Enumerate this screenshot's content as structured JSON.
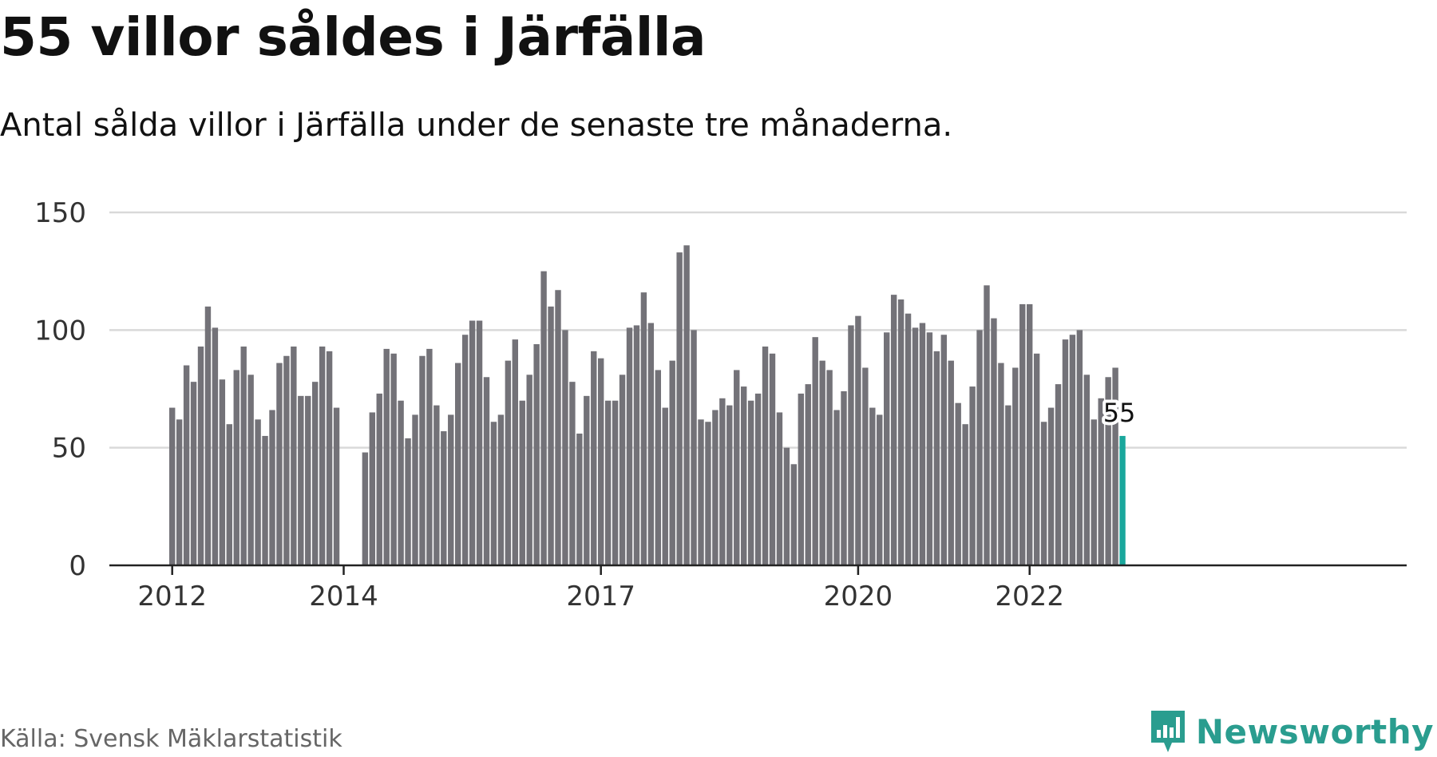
{
  "header": {
    "title": "55 villor såldes i Järfälla",
    "subtitle": "Antal sålda villor i Järfälla under de senaste tre månaderna."
  },
  "footer": {
    "source": "Källa: Svensk Mäklarstatistik",
    "brand": "Newsworthy"
  },
  "colors": {
    "bar": "#737278",
    "highlight": "#1aa79c",
    "grid": "#d9d9d9",
    "axis": "#222222",
    "brand": "#2a9d8f"
  },
  "chart_data": {
    "type": "bar",
    "title": "55 villor såldes i Järfälla",
    "subtitle": "Antal sålda villor i Järfälla under de senaste tre månaderna.",
    "xlabel": "",
    "ylabel": "",
    "ylim": [
      0,
      150
    ],
    "yticks": [
      0,
      50,
      100,
      150
    ],
    "xticks": [
      "2012",
      "2014",
      "2017",
      "2020",
      "2022"
    ],
    "grid": true,
    "values": [
      67,
      62,
      85,
      78,
      93,
      110,
      101,
      79,
      60,
      83,
      93,
      81,
      62,
      55,
      66,
      86,
      89,
      93,
      72,
      72,
      78,
      93,
      91,
      67,
      null,
      null,
      null,
      48,
      65,
      73,
      92,
      90,
      70,
      54,
      64,
      89,
      92,
      68,
      57,
      64,
      86,
      98,
      104,
      104,
      80,
      61,
      64,
      87,
      96,
      70,
      81,
      94,
      125,
      110,
      117,
      100,
      78,
      56,
      72,
      91,
      88,
      70,
      70,
      81,
      101,
      102,
      116,
      103,
      83,
      67,
      87,
      133,
      136,
      100,
      62,
      61,
      66,
      71,
      68,
      83,
      76,
      70,
      73,
      93,
      90,
      65,
      50,
      43,
      73,
      77,
      97,
      87,
      83,
      66,
      74,
      102,
      106,
      84,
      67,
      64,
      99,
      115,
      113,
      107,
      101,
      103,
      99,
      91,
      98,
      87,
      69,
      60,
      76,
      100,
      119,
      105,
      86,
      68,
      84,
      111,
      111,
      90,
      61,
      67,
      77,
      96,
      98,
      100,
      81,
      62,
      71,
      80,
      84,
      55
    ],
    "highlight": {
      "label": "55",
      "value": 55
    }
  }
}
